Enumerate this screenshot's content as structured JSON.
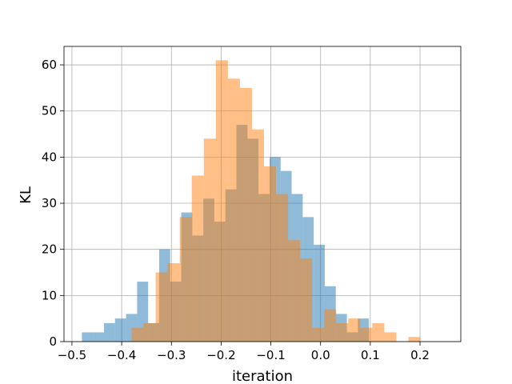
{
  "chart_data": {
    "type": "histogram",
    "title": "",
    "xlabel": "iteration",
    "ylabel": "KL",
    "xlim": [
      -0.516,
      0.282
    ],
    "ylim": [
      0,
      64
    ],
    "xticks": [
      -0.5,
      -0.4,
      -0.3,
      -0.2,
      -0.1,
      0.0,
      0.1,
      0.2
    ],
    "xtick_labels": [
      "−0.5",
      "−0.4",
      "−0.3",
      "−0.2",
      "−0.1",
      "0.0",
      "0.1",
      "0.2"
    ],
    "yticks": [
      0,
      10,
      20,
      30,
      40,
      50,
      60
    ],
    "ytick_labels": [
      "0",
      "10",
      "20",
      "30",
      "40",
      "50",
      "60"
    ],
    "grid": true,
    "series": [
      {
        "color": "#1f77b4",
        "alpha": 0.5,
        "bin_start": -0.48,
        "bin_width": 0.0222,
        "counts": [
          2,
          2,
          4,
          5,
          6,
          13,
          4,
          20,
          13,
          28,
          23,
          31,
          26,
          33,
          47,
          44,
          32,
          40,
          37,
          32,
          27,
          21,
          12,
          6,
          2,
          5
        ]
      },
      {
        "color": "#ff7f0e",
        "alpha": 0.5,
        "bin_start": -0.38,
        "bin_width": 0.0242,
        "counts": [
          3,
          4,
          15,
          17,
          27,
          36,
          44,
          61,
          57,
          55,
          46,
          38,
          32,
          22,
          18,
          3,
          7,
          4,
          5,
          3,
          4,
          2,
          0,
          1
        ]
      }
    ]
  }
}
